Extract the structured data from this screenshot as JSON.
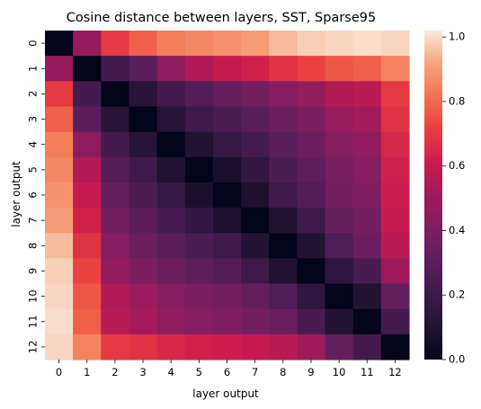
{
  "chart_data": {
    "type": "heatmap",
    "title": "Cosine distance between layers, SST, Sparse95",
    "xlabel": "layer output",
    "ylabel": "layer output",
    "x_categories": [
      "0",
      "1",
      "2",
      "3",
      "4",
      "5",
      "6",
      "7",
      "8",
      "9",
      "10",
      "11",
      "12"
    ],
    "y_categories": [
      "0",
      "1",
      "2",
      "3",
      "4",
      "5",
      "6",
      "7",
      "8",
      "9",
      "10",
      "11",
      "12"
    ],
    "colorbar": {
      "min": 0.0,
      "max": 1.02,
      "ticks": [
        "0.0",
        "0.2",
        "0.4",
        "0.6",
        "0.8",
        "1.0"
      ],
      "tick_values": [
        0,
        0.2,
        0.4,
        0.6,
        0.8,
        1.0
      ],
      "colormap": "rocket"
    },
    "grid": false,
    "values": [
      [
        0.0,
        0.48,
        0.7,
        0.78,
        0.84,
        0.86,
        0.88,
        0.9,
        0.95,
        0.98,
        0.99,
        1.0,
        0.99
      ],
      [
        0.48,
        0.0,
        0.22,
        0.3,
        0.45,
        0.55,
        0.6,
        0.63,
        0.68,
        0.72,
        0.76,
        0.78,
        0.85
      ],
      [
        0.7,
        0.22,
        0.0,
        0.12,
        0.22,
        0.28,
        0.33,
        0.38,
        0.43,
        0.47,
        0.55,
        0.57,
        0.7
      ],
      [
        0.78,
        0.3,
        0.12,
        0.0,
        0.12,
        0.2,
        0.25,
        0.3,
        0.35,
        0.4,
        0.49,
        0.52,
        0.68
      ],
      [
        0.84,
        0.45,
        0.22,
        0.12,
        0.0,
        0.1,
        0.17,
        0.23,
        0.3,
        0.35,
        0.43,
        0.46,
        0.65
      ],
      [
        0.86,
        0.55,
        0.28,
        0.2,
        0.1,
        0.0,
        0.08,
        0.16,
        0.25,
        0.31,
        0.4,
        0.43,
        0.63
      ],
      [
        0.88,
        0.6,
        0.33,
        0.25,
        0.17,
        0.08,
        0.0,
        0.09,
        0.2,
        0.28,
        0.38,
        0.41,
        0.62
      ],
      [
        0.9,
        0.63,
        0.38,
        0.3,
        0.23,
        0.16,
        0.09,
        0.0,
        0.1,
        0.2,
        0.33,
        0.38,
        0.6
      ],
      [
        0.95,
        0.68,
        0.43,
        0.35,
        0.3,
        0.25,
        0.2,
        0.1,
        0.0,
        0.1,
        0.27,
        0.35,
        0.57
      ],
      [
        0.98,
        0.72,
        0.47,
        0.4,
        0.35,
        0.31,
        0.28,
        0.2,
        0.1,
        0.0,
        0.15,
        0.24,
        0.5
      ],
      [
        0.99,
        0.76,
        0.55,
        0.49,
        0.43,
        0.4,
        0.38,
        0.33,
        0.27,
        0.15,
        0.0,
        0.1,
        0.33
      ],
      [
        1.0,
        0.78,
        0.57,
        0.52,
        0.46,
        0.43,
        0.41,
        0.38,
        0.35,
        0.24,
        0.1,
        0.0,
        0.22
      ],
      [
        0.99,
        0.85,
        0.7,
        0.68,
        0.65,
        0.63,
        0.62,
        0.6,
        0.57,
        0.5,
        0.33,
        0.22,
        0.0
      ]
    ]
  }
}
